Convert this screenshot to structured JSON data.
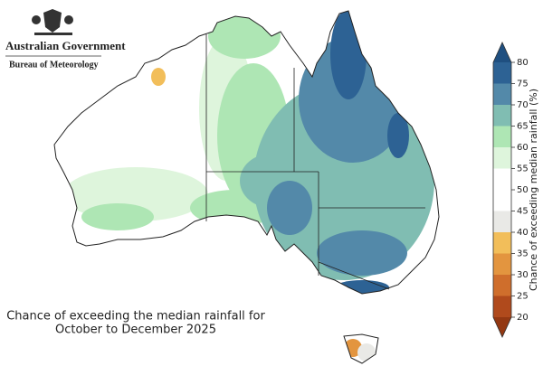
{
  "header": {
    "government": "Australian Government",
    "agency": "Bureau of Meteorology"
  },
  "caption": [
    "Chance of exceeding the median rainfall for",
    "October to December 2025"
  ],
  "legend": {
    "title": "Chance of exceeding median rainfall (%)",
    "ticks": [
      20,
      25,
      30,
      35,
      40,
      45,
      50,
      55,
      60,
      65,
      70,
      75,
      80
    ],
    "colors": [
      "#b04a1c",
      "#cf6e2c",
      "#e3953f",
      "#f2be5a",
      "#e9e9e6",
      "#ffffff",
      "#ffffff",
      "#def5dc",
      "#aee6b4",
      "#80bdb2",
      "#5389a9",
      "#2d6294"
    ],
    "under_color": "#933812",
    "over_color": "#1f4f80"
  }
}
